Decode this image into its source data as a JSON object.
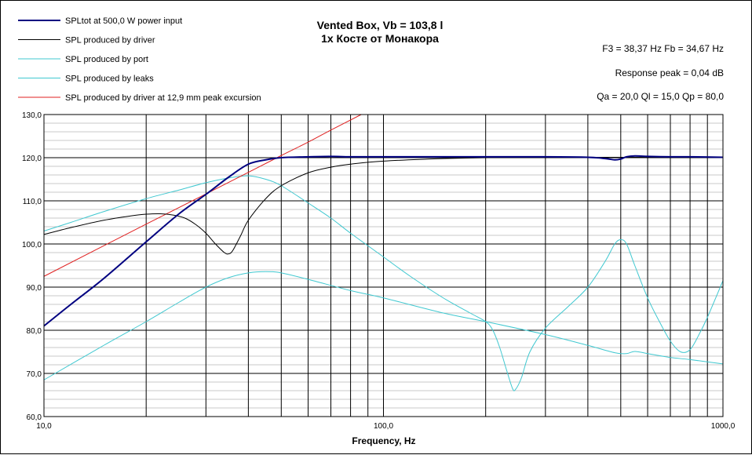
{
  "chart_data": {
    "type": "line",
    "title": "Vented Box, Vb = 103,8 l",
    "subtitle": "1x Косте от Монакора",
    "xlabel": "Frequency, Hz",
    "ylabel": "",
    "x_scale": "log",
    "xlim": [
      10,
      1000
    ],
    "ylim": [
      60,
      130
    ],
    "grid": true,
    "legend_position": "top-left",
    "x_ticks": [
      {
        "value": 10,
        "label": "10,0"
      },
      {
        "value": 100,
        "label": "100,0"
      },
      {
        "value": 1000,
        "label": "1000,0"
      }
    ],
    "y_ticks": [
      {
        "value": 60,
        "label": "60,0"
      },
      {
        "value": 70,
        "label": "70,0"
      },
      {
        "value": 80,
        "label": "80,0"
      },
      {
        "value": 90,
        "label": "90,0"
      },
      {
        "value": 100,
        "label": "100,0"
      },
      {
        "value": 110,
        "label": "110,0"
      },
      {
        "value": 120,
        "label": "120,0"
      },
      {
        "value": 130,
        "label": "130,0"
      }
    ],
    "annotations": [
      "F3 = 38,37  Hz   Fb = 34,67  Hz",
      "Response peak = 0,04 dB",
      "Qa = 20,0   Ql = 15,0   Qp = 80,0"
    ],
    "series": [
      {
        "name": "SPLtot at 500,0 W power input",
        "color": "#000080",
        "width": 2,
        "points": [
          [
            10,
            81
          ],
          [
            12,
            86
          ],
          [
            15,
            92
          ],
          [
            20,
            100.5
          ],
          [
            25,
            107
          ],
          [
            30,
            111.5
          ],
          [
            35,
            115.5
          ],
          [
            40,
            118.5
          ],
          [
            45,
            119.5
          ],
          [
            50,
            120
          ],
          [
            60,
            120.2
          ],
          [
            70,
            120.3
          ],
          [
            80,
            120.2
          ],
          [
            100,
            120.2
          ],
          [
            150,
            120.2
          ],
          [
            200,
            120.2
          ],
          [
            300,
            120.2
          ],
          [
            400,
            120.1
          ],
          [
            450,
            119.8
          ],
          [
            480,
            119.5
          ],
          [
            500,
            119.7
          ],
          [
            520,
            120.2
          ],
          [
            550,
            120.4
          ],
          [
            600,
            120.3
          ],
          [
            700,
            120.2
          ],
          [
            800,
            120.2
          ],
          [
            1000,
            120.1
          ]
        ]
      },
      {
        "name": "SPL produced by driver",
        "color": "#000000",
        "width": 1,
        "points": [
          [
            10,
            102.2
          ],
          [
            12,
            103.8
          ],
          [
            15,
            105.5
          ],
          [
            18,
            106.5
          ],
          [
            20,
            106.9
          ],
          [
            22,
            107
          ],
          [
            24,
            106.7
          ],
          [
            26,
            106
          ],
          [
            28,
            104.5
          ],
          [
            30,
            102.5
          ],
          [
            32,
            100
          ],
          [
            34,
            98
          ],
          [
            35,
            97.7
          ],
          [
            36,
            98.5
          ],
          [
            38,
            102
          ],
          [
            40,
            105.5
          ],
          [
            45,
            110.5
          ],
          [
            50,
            113.5
          ],
          [
            60,
            116.5
          ],
          [
            70,
            117.8
          ],
          [
            80,
            118.5
          ],
          [
            100,
            119.2
          ],
          [
            150,
            119.8
          ],
          [
            200,
            120
          ],
          [
            300,
            120.1
          ],
          [
            500,
            120.1
          ],
          [
            1000,
            120.1
          ]
        ]
      },
      {
        "name": "SPL produced by port",
        "color": "#40C8D0",
        "width": 1,
        "points": [
          [
            10,
            103
          ],
          [
            12,
            105
          ],
          [
            15,
            107.5
          ],
          [
            20,
            110.5
          ],
          [
            25,
            112.5
          ],
          [
            30,
            114.2
          ],
          [
            35,
            115.3
          ],
          [
            40,
            115.8
          ],
          [
            45,
            115
          ],
          [
            50,
            113.5
          ],
          [
            60,
            109.5
          ],
          [
            70,
            106
          ],
          [
            80,
            102.5
          ],
          [
            100,
            97
          ],
          [
            120,
            92.5
          ],
          [
            150,
            87.5
          ],
          [
            180,
            84
          ],
          [
            200,
            82
          ],
          [
            210,
            80
          ],
          [
            220,
            76
          ],
          [
            230,
            71
          ],
          [
            240,
            66.5
          ],
          [
            245,
            66.3
          ],
          [
            255,
            69
          ],
          [
            270,
            75
          ],
          [
            300,
            80.5
          ],
          [
            350,
            85.5
          ],
          [
            400,
            90
          ],
          [
            450,
            96
          ],
          [
            480,
            100
          ],
          [
            500,
            101
          ],
          [
            520,
            100
          ],
          [
            550,
            95
          ],
          [
            600,
            87.5
          ],
          [
            650,
            82
          ],
          [
            700,
            77.5
          ],
          [
            750,
            75
          ],
          [
            800,
            75.5
          ],
          [
            850,
            79
          ],
          [
            900,
            83
          ],
          [
            1000,
            91.5
          ]
        ]
      },
      {
        "name": "SPL produced by leaks",
        "color": "#40C8D0",
        "width": 1,
        "points": [
          [
            10,
            68.5
          ],
          [
            15,
            76.5
          ],
          [
            20,
            82
          ],
          [
            25,
            86.5
          ],
          [
            30,
            90
          ],
          [
            35,
            92.2
          ],
          [
            40,
            93.3
          ],
          [
            45,
            93.6
          ],
          [
            50,
            93.3
          ],
          [
            60,
            91.8
          ],
          [
            80,
            89.2
          ],
          [
            100,
            87.5
          ],
          [
            150,
            84
          ],
          [
            200,
            82
          ],
          [
            300,
            79
          ],
          [
            400,
            76.5
          ],
          [
            480,
            74.8
          ],
          [
            520,
            74.6
          ],
          [
            550,
            75.1
          ],
          [
            600,
            74.6
          ],
          [
            700,
            73.7
          ],
          [
            800,
            73.2
          ],
          [
            1000,
            72.2
          ]
        ]
      },
      {
        "name": "SPL produced by driver at 12,9 mm peak excursion",
        "color": "#E02020",
        "width": 1,
        "points": [
          [
            10,
            92.5
          ],
          [
            20,
            104.6
          ],
          [
            30,
            111.6
          ],
          [
            40,
            116.6
          ],
          [
            50,
            120.5
          ],
          [
            60,
            123.6
          ],
          [
            70,
            126.4
          ],
          [
            86,
            130
          ]
        ]
      }
    ]
  }
}
